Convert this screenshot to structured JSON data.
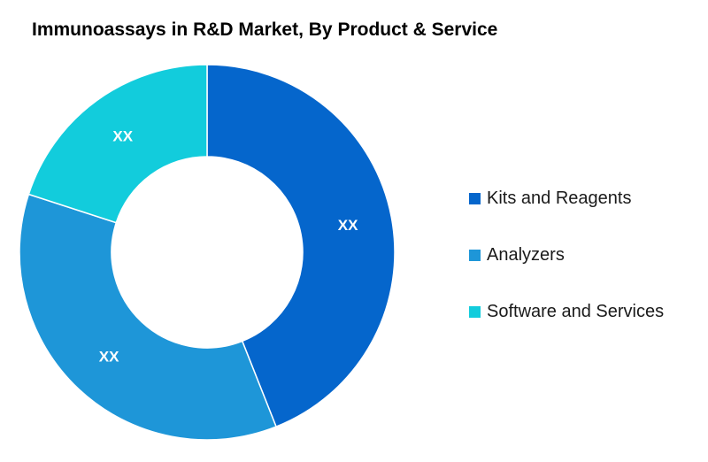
{
  "chart_data": {
    "type": "pie",
    "title": "Immunoassays in R&D Market, By Product & Service",
    "categories": [
      "Kits and Reagents",
      "Analyzers",
      "Software and Services"
    ],
    "values": [
      44,
      36,
      20
    ],
    "data_labels": [
      "XX",
      "XX",
      "XX"
    ],
    "colors": [
      "#0566cc",
      "#1e96d8",
      "#12ccdc"
    ],
    "legend_position": "right",
    "donut": true
  }
}
